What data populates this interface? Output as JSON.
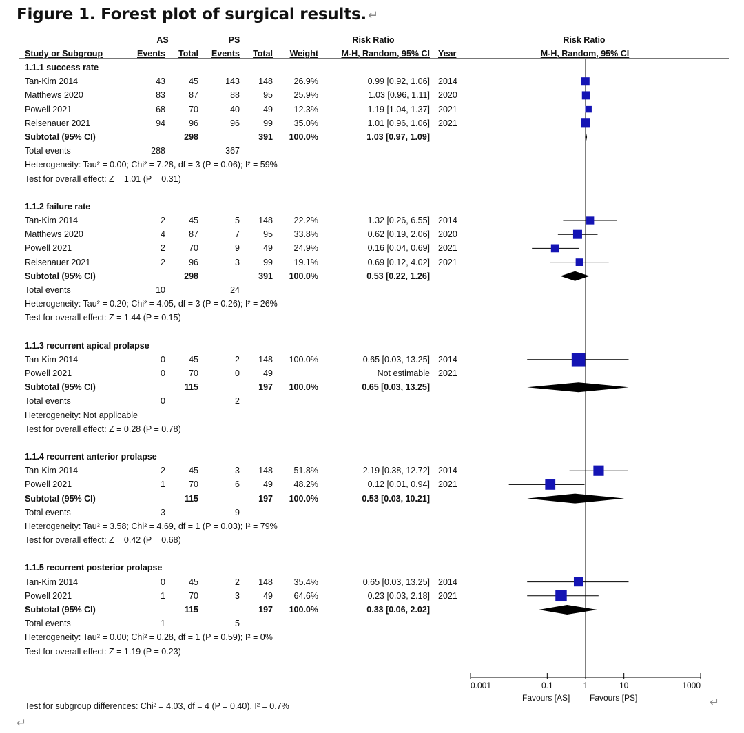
{
  "figure_title": "Figure 1. Forest plot of surgical results.",
  "paragraph_mark": "↵",
  "header": {
    "group_as": "AS",
    "group_ps": "PS",
    "rr_left": "Risk Ratio",
    "rr_right": "Risk Ratio",
    "col_study": "Study or Subgroup",
    "col_events_as": "Events",
    "col_total_as": "Total",
    "col_events_ps": "Events",
    "col_total_ps": "Total",
    "col_weight": "Weight",
    "col_method_left": "M-H, Random, 95% CI",
    "col_year": "Year",
    "col_method_right": "M-H, Random, 95% CI"
  },
  "footer": {
    "subgroup_test": "Test for subgroup differences: Chi² = 4.03, df = 4 (P = 0.40), I² = 0.7%",
    "favours_left": "Favours [AS]",
    "favours_right": "Favours [PS]"
  },
  "chart_data": {
    "type": "forest",
    "x_scale": "log",
    "xlim": [
      0.001,
      1000
    ],
    "null_line": 1,
    "x_ticks": [
      "0.001",
      "0.1",
      "1",
      "10",
      "1000"
    ],
    "x_tick_values": [
      0.001,
      0.1,
      1,
      10,
      1000
    ],
    "colors": {
      "study": "#1414b4",
      "diamond": "#000000"
    },
    "subgroups": [
      {
        "title": "1.1.1 success rate",
        "studies": [
          {
            "study": "Tan-Kim 2014",
            "as_events": "43",
            "as_total": "45",
            "ps_events": "143",
            "ps_total": "148",
            "weight": "26.9%",
            "rr_text": "0.99 [0.92, 1.06]",
            "year": "2014",
            "rr": 0.99,
            "lo": 0.92,
            "hi": 1.06,
            "w": 26.9
          },
          {
            "study": "Matthews 2020",
            "as_events": "83",
            "as_total": "87",
            "ps_events": "88",
            "ps_total": "95",
            "weight": "25.9%",
            "rr_text": "1.03 [0.96, 1.11]",
            "year": "2020",
            "rr": 1.03,
            "lo": 0.96,
            "hi": 1.11,
            "w": 25.9
          },
          {
            "study": "Powell 2021",
            "as_events": "68",
            "as_total": "70",
            "ps_events": "40",
            "ps_total": "49",
            "weight": "12.3%",
            "rr_text": "1.19 [1.04, 1.37]",
            "year": "2021",
            "rr": 1.19,
            "lo": 1.04,
            "hi": 1.37,
            "w": 12.3
          },
          {
            "study": "Reisenauer 2021",
            "as_events": "94",
            "as_total": "96",
            "ps_events": "96",
            "ps_total": "99",
            "weight": "35.0%",
            "rr_text": "1.01 [0.96, 1.06]",
            "year": "2021",
            "rr": 1.01,
            "lo": 0.96,
            "hi": 1.06,
            "w": 35.0
          }
        ],
        "subtotal": {
          "label": "Subtotal (95% CI)",
          "as_total": "298",
          "ps_total": "391",
          "weight": "100.0%",
          "rr_text": "1.03 [0.97, 1.09]",
          "rr": 1.03,
          "lo": 0.97,
          "hi": 1.09
        },
        "total_events": {
          "label": "Total events",
          "as": "288",
          "ps": "367"
        },
        "heterogeneity": "Heterogeneity: Tau² = 0.00; Chi² = 7.28, df = 3 (P = 0.06); I² = 59%",
        "overall": "Test for overall effect: Z = 1.01 (P = 0.31)"
      },
      {
        "title": "1.1.2 failure rate",
        "studies": [
          {
            "study": "Tan-Kim 2014",
            "as_events": "2",
            "as_total": "45",
            "ps_events": "5",
            "ps_total": "148",
            "weight": "22.2%",
            "rr_text": "1.32 [0.26, 6.55]",
            "year": "2014",
            "rr": 1.32,
            "lo": 0.26,
            "hi": 6.55,
            "w": 22.2
          },
          {
            "study": "Matthews 2020",
            "as_events": "4",
            "as_total": "87",
            "ps_events": "7",
            "ps_total": "95",
            "weight": "33.8%",
            "rr_text": "0.62 [0.19, 2.06]",
            "year": "2020",
            "rr": 0.62,
            "lo": 0.19,
            "hi": 2.06,
            "w": 33.8
          },
          {
            "study": "Powell 2021",
            "as_events": "2",
            "as_total": "70",
            "ps_events": "9",
            "ps_total": "49",
            "weight": "24.9%",
            "rr_text": "0.16 [0.04, 0.69]",
            "year": "2021",
            "rr": 0.16,
            "lo": 0.04,
            "hi": 0.69,
            "w": 24.9
          },
          {
            "study": "Reisenauer 2021",
            "as_events": "2",
            "as_total": "96",
            "ps_events": "3",
            "ps_total": "99",
            "weight": "19.1%",
            "rr_text": "0.69 [0.12, 4.02]",
            "year": "2021",
            "rr": 0.69,
            "lo": 0.12,
            "hi": 4.02,
            "w": 19.1
          }
        ],
        "subtotal": {
          "label": "Subtotal (95% CI)",
          "as_total": "298",
          "ps_total": "391",
          "weight": "100.0%",
          "rr_text": "0.53 [0.22, 1.26]",
          "rr": 0.53,
          "lo": 0.22,
          "hi": 1.26
        },
        "total_events": {
          "label": "Total events",
          "as": "10",
          "ps": "24"
        },
        "heterogeneity": "Heterogeneity: Tau² = 0.20; Chi² = 4.05, df = 3 (P = 0.26); I² = 26%",
        "overall": "Test for overall effect: Z = 1.44 (P = 0.15)"
      },
      {
        "title": "1.1.3 recurrent apical prolapse",
        "studies": [
          {
            "study": "Tan-Kim 2014",
            "as_events": "0",
            "as_total": "45",
            "ps_events": "2",
            "ps_total": "148",
            "weight": "100.0%",
            "rr_text": "0.65 [0.03, 13.25]",
            "year": "2014",
            "rr": 0.65,
            "lo": 0.03,
            "hi": 13.25,
            "w": 100.0
          },
          {
            "study": "Powell 2021",
            "as_events": "0",
            "as_total": "70",
            "ps_events": "0",
            "ps_total": "49",
            "weight": "",
            "rr_text": "Not estimable",
            "year": "2021",
            "rr": null,
            "lo": null,
            "hi": null,
            "w": 0
          }
        ],
        "subtotal": {
          "label": "Subtotal (95% CI)",
          "as_total": "115",
          "ps_total": "197",
          "weight": "100.0%",
          "rr_text": "0.65 [0.03, 13.25]",
          "rr": 0.65,
          "lo": 0.03,
          "hi": 13.25
        },
        "total_events": {
          "label": "Total events",
          "as": "0",
          "ps": "2"
        },
        "heterogeneity": "Heterogeneity: Not applicable",
        "overall": "Test for overall effect: Z = 0.28 (P = 0.78)"
      },
      {
        "title": "1.1.4 recurrent anterior prolapse",
        "studies": [
          {
            "study": "Tan-Kim 2014",
            "as_events": "2",
            "as_total": "45",
            "ps_events": "3",
            "ps_total": "148",
            "weight": "51.8%",
            "rr_text": "2.19 [0.38, 12.72]",
            "year": "2014",
            "rr": 2.19,
            "lo": 0.38,
            "hi": 12.72,
            "w": 51.8
          },
          {
            "study": "Powell 2021",
            "as_events": "1",
            "as_total": "70",
            "ps_events": "6",
            "ps_total": "49",
            "weight": "48.2%",
            "rr_text": "0.12 [0.01, 0.94]",
            "year": "2021",
            "rr": 0.12,
            "lo": 0.01,
            "hi": 0.94,
            "w": 48.2
          }
        ],
        "subtotal": {
          "label": "Subtotal (95% CI)",
          "as_total": "115",
          "ps_total": "197",
          "weight": "100.0%",
          "rr_text": "0.53 [0.03, 10.21]",
          "rr": 0.53,
          "lo": 0.03,
          "hi": 10.21
        },
        "total_events": {
          "label": "Total events",
          "as": "3",
          "ps": "9"
        },
        "heterogeneity": "Heterogeneity: Tau² = 3.58; Chi² = 4.69, df = 1 (P = 0.03); I² = 79%",
        "overall": "Test for overall effect: Z = 0.42 (P = 0.68)"
      },
      {
        "title": "1.1.5 recurrent posterior prolapse",
        "studies": [
          {
            "study": "Tan-Kim 2014",
            "as_events": "0",
            "as_total": "45",
            "ps_events": "2",
            "ps_total": "148",
            "weight": "35.4%",
            "rr_text": "0.65 [0.03, 13.25]",
            "year": "2014",
            "rr": 0.65,
            "lo": 0.03,
            "hi": 13.25,
            "w": 35.4
          },
          {
            "study": "Powell 2021",
            "as_events": "1",
            "as_total": "70",
            "ps_events": "3",
            "ps_total": "49",
            "weight": "64.6%",
            "rr_text": "0.23 [0.03, 2.18]",
            "year": "2021",
            "rr": 0.23,
            "lo": 0.03,
            "hi": 2.18,
            "w": 64.6
          }
        ],
        "subtotal": {
          "label": "Subtotal (95% CI)",
          "as_total": "115",
          "ps_total": "197",
          "weight": "100.0%",
          "rr_text": "0.33 [0.06, 2.02]",
          "rr": 0.33,
          "lo": 0.06,
          "hi": 2.02
        },
        "total_events": {
          "label": "Total events",
          "as": "1",
          "ps": "5"
        },
        "heterogeneity": "Heterogeneity: Tau² = 0.00; Chi² = 0.28, df = 1 (P = 0.59); I² = 0%",
        "overall": "Test for overall effect: Z = 1.19 (P = 0.23)"
      }
    ]
  }
}
